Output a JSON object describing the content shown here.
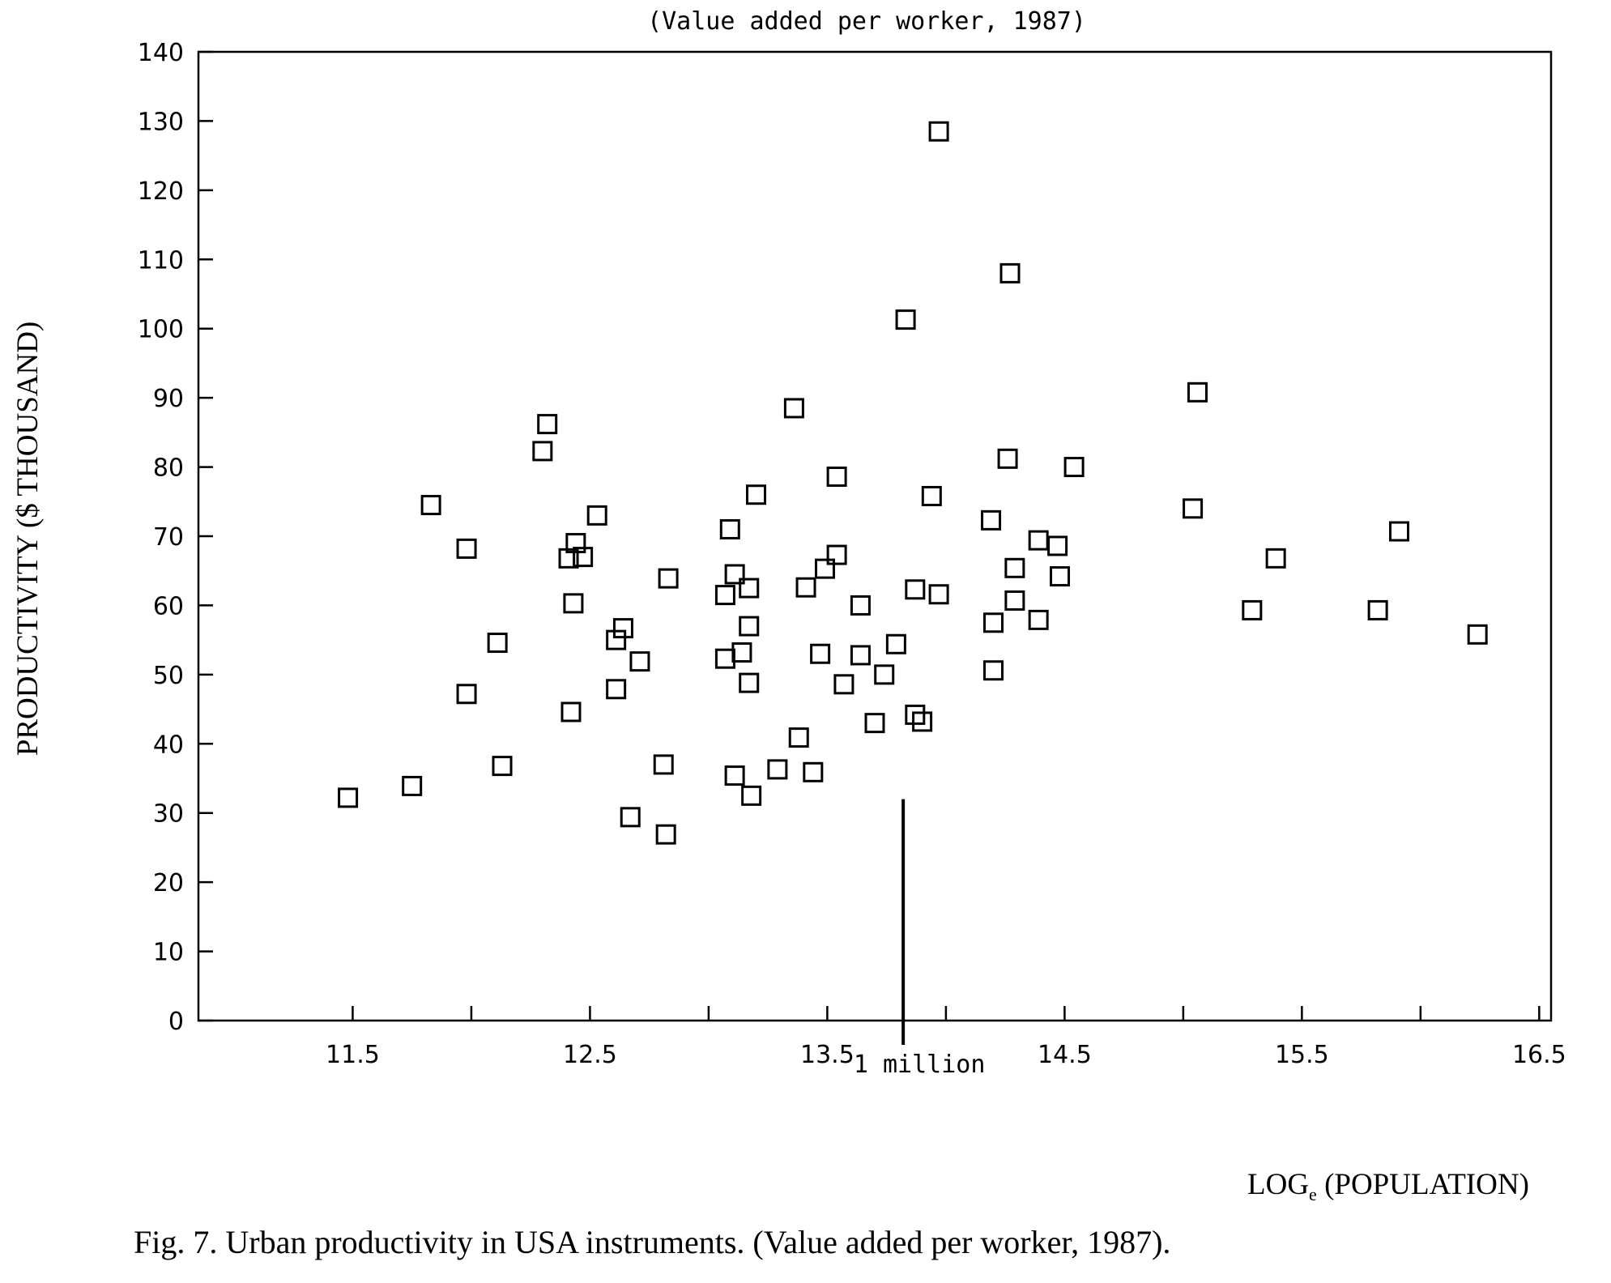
{
  "figure": {
    "caption": "Fig. 7. Urban productivity in USA instruments. (Value added per worker, 1987)."
  },
  "chart_data": {
    "type": "scatter",
    "title": "(Value added per worker, 1987)",
    "xlabel": "LOGe (POPULATION)",
    "xlabel_main": "LOG",
    "xlabel_sub": "e",
    "xlabel_rest": " (POPULATION)",
    "ylabel": "PRODUCTIVITY ($ THOUSAND)",
    "xlim": [
      10.85,
      16.55
    ],
    "ylim": [
      0,
      140
    ],
    "xticks": [
      11.5,
      12.5,
      13.5,
      14.5,
      15.5,
      16.5
    ],
    "xtick_labels": [
      "11.5",
      "12.5",
      "13.5",
      "14.5",
      "15.5",
      "16.5"
    ],
    "yticks": [
      0,
      10,
      20,
      30,
      40,
      50,
      60,
      70,
      80,
      90,
      100,
      110,
      120,
      130,
      140
    ],
    "ytick_labels": [
      "0",
      "10",
      "20",
      "30",
      "40",
      "50",
      "60",
      "70",
      "80",
      "90",
      "100",
      "110",
      "120",
      "130",
      "140"
    ],
    "grid": false,
    "marker": "open-square",
    "annotation": {
      "x": 13.82,
      "y_top": 32,
      "label": "1 million"
    },
    "points": [
      {
        "x": 11.48,
        "y": 32.2
      },
      {
        "x": 11.75,
        "y": 33.9
      },
      {
        "x": 11.83,
        "y": 74.5
      },
      {
        "x": 11.98,
        "y": 68.2
      },
      {
        "x": 11.98,
        "y": 47.2
      },
      {
        "x": 12.11,
        "y": 54.6
      },
      {
        "x": 12.13,
        "y": 36.8
      },
      {
        "x": 12.3,
        "y": 82.3
      },
      {
        "x": 12.32,
        "y": 86.2
      },
      {
        "x": 12.41,
        "y": 66.8
      },
      {
        "x": 12.42,
        "y": 44.6
      },
      {
        "x": 12.43,
        "y": 60.3
      },
      {
        "x": 12.44,
        "y": 69.0
      },
      {
        "x": 12.47,
        "y": 67.0
      },
      {
        "x": 12.53,
        "y": 73.0
      },
      {
        "x": 12.61,
        "y": 55.0
      },
      {
        "x": 12.61,
        "y": 47.9
      },
      {
        "x": 12.64,
        "y": 56.7
      },
      {
        "x": 12.67,
        "y": 29.4
      },
      {
        "x": 12.71,
        "y": 51.9
      },
      {
        "x": 12.81,
        "y": 37.0
      },
      {
        "x": 12.82,
        "y": 26.9
      },
      {
        "x": 12.83,
        "y": 63.9
      },
      {
        "x": 13.07,
        "y": 61.5
      },
      {
        "x": 13.07,
        "y": 52.3
      },
      {
        "x": 13.09,
        "y": 71.0
      },
      {
        "x": 13.11,
        "y": 64.5
      },
      {
        "x": 13.11,
        "y": 35.4
      },
      {
        "x": 13.14,
        "y": 53.2
      },
      {
        "x": 13.17,
        "y": 62.5
      },
      {
        "x": 13.17,
        "y": 57.0
      },
      {
        "x": 13.17,
        "y": 48.8
      },
      {
        "x": 13.18,
        "y": 32.5
      },
      {
        "x": 13.2,
        "y": 76.0
      },
      {
        "x": 13.29,
        "y": 36.3
      },
      {
        "x": 13.36,
        "y": 88.5
      },
      {
        "x": 13.38,
        "y": 40.9
      },
      {
        "x": 13.41,
        "y": 62.6
      },
      {
        "x": 13.44,
        "y": 35.9
      },
      {
        "x": 13.47,
        "y": 53.0
      },
      {
        "x": 13.49,
        "y": 65.3
      },
      {
        "x": 13.54,
        "y": 78.6
      },
      {
        "x": 13.54,
        "y": 67.3
      },
      {
        "x": 13.57,
        "y": 48.6
      },
      {
        "x": 13.64,
        "y": 60.0
      },
      {
        "x": 13.64,
        "y": 52.8
      },
      {
        "x": 13.7,
        "y": 43.0
      },
      {
        "x": 13.74,
        "y": 50.0
      },
      {
        "x": 13.79,
        "y": 54.4
      },
      {
        "x": 13.83,
        "y": 101.3
      },
      {
        "x": 13.87,
        "y": 44.2
      },
      {
        "x": 13.87,
        "y": 62.3
      },
      {
        "x": 13.9,
        "y": 43.2
      },
      {
        "x": 13.94,
        "y": 75.8
      },
      {
        "x": 13.97,
        "y": 128.5
      },
      {
        "x": 13.97,
        "y": 61.6
      },
      {
        "x": 14.19,
        "y": 72.3
      },
      {
        "x": 14.2,
        "y": 57.5
      },
      {
        "x": 14.2,
        "y": 50.6
      },
      {
        "x": 14.26,
        "y": 81.2
      },
      {
        "x": 14.27,
        "y": 108.0
      },
      {
        "x": 14.29,
        "y": 65.4
      },
      {
        "x": 14.29,
        "y": 60.7
      },
      {
        "x": 14.39,
        "y": 69.4
      },
      {
        "x": 14.39,
        "y": 57.9
      },
      {
        "x": 14.47,
        "y": 68.6
      },
      {
        "x": 14.48,
        "y": 64.2
      },
      {
        "x": 14.54,
        "y": 80.0
      },
      {
        "x": 15.04,
        "y": 74.0
      },
      {
        "x": 15.06,
        "y": 90.8
      },
      {
        "x": 15.29,
        "y": 59.3
      },
      {
        "x": 15.39,
        "y": 66.8
      },
      {
        "x": 15.82,
        "y": 59.3
      },
      {
        "x": 15.91,
        "y": 70.7
      },
      {
        "x": 16.24,
        "y": 55.8
      }
    ]
  }
}
